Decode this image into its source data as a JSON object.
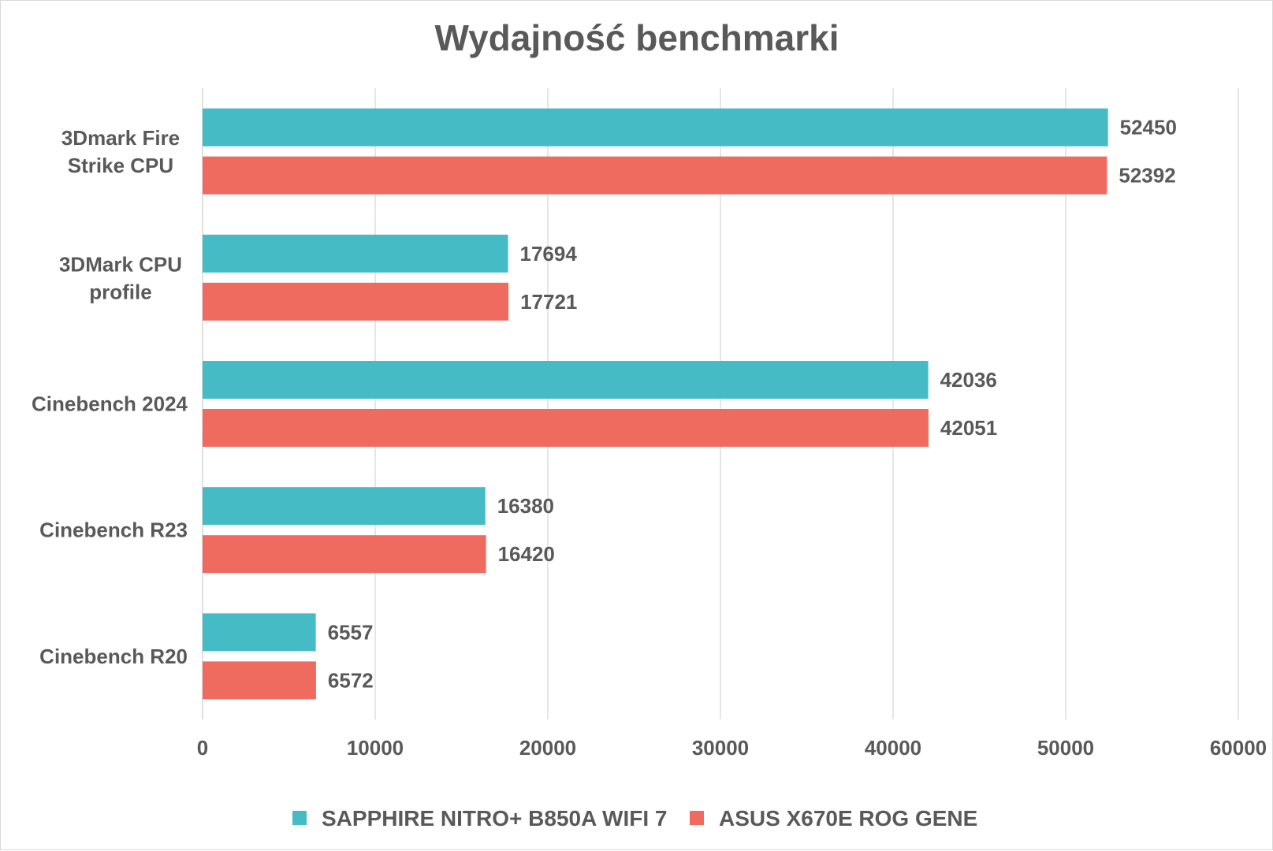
{
  "chart_data": {
    "type": "bar",
    "orientation": "horizontal",
    "title": "Wydajność benchmarki",
    "categories": [
      "3Dmark Fire Strike CPU",
      "3DMark CPU profile",
      "Cinebench 2024",
      "Cinebench R23",
      "Cinebench R20"
    ],
    "category_lines": [
      [
        "3Dmark Fire",
        "Strike CPU"
      ],
      [
        "3DMark CPU",
        "profile"
      ],
      [
        "Cinebench 2024"
      ],
      [
        "Cinebench R23"
      ],
      [
        "Cinebench R20"
      ]
    ],
    "series": [
      {
        "name": "SAPPHIRE NITRO+ B850A WIFI 7",
        "color": "#45BBC5",
        "values": [
          52450,
          17694,
          42036,
          16380,
          6557
        ]
      },
      {
        "name": "ASUS X670E ROG GENE",
        "color": "#EF6B60",
        "values": [
          52392,
          17721,
          42051,
          16420,
          6572
        ]
      }
    ],
    "xlim": [
      0,
      60000
    ],
    "xticks": [
      0,
      10000,
      20000,
      30000,
      40000,
      50000,
      60000
    ],
    "xlabel": "",
    "ylabel": "",
    "grid": true,
    "legend_position": "bottom",
    "data_labels": true
  }
}
